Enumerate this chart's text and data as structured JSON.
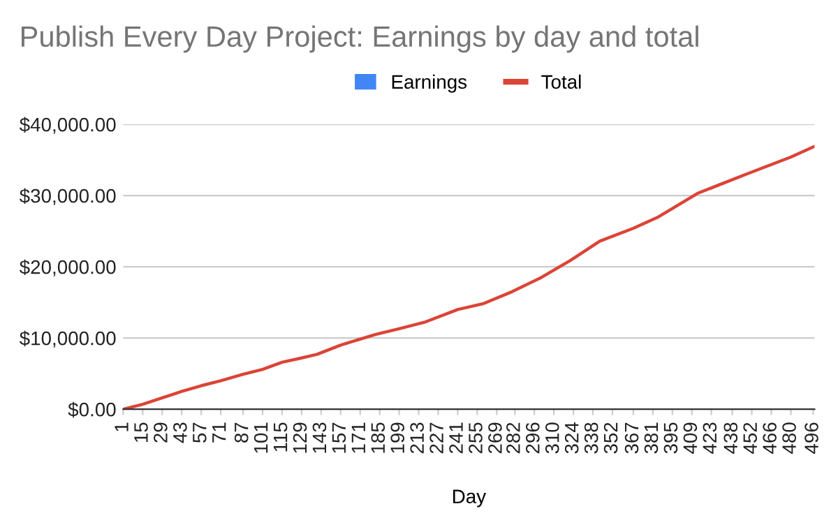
{
  "chart_data": {
    "type": "line",
    "title": "Publish Every Day Project: Earnings by day and total",
    "xlabel": "Day",
    "x": [
      1,
      15,
      29,
      43,
      57,
      71,
      87,
      101,
      115,
      129,
      140,
      157,
      182,
      199,
      217,
      241,
      259,
      280,
      301,
      322,
      343,
      367,
      385,
      413,
      448,
      480,
      497
    ],
    "series": [
      {
        "name": "Earnings",
        "type": "bar",
        "color": "#4285f4",
        "values": [
          null,
          null,
          null,
          null,
          null,
          null,
          null,
          null,
          null,
          null,
          null,
          null,
          null,
          null,
          null,
          null,
          null,
          null,
          null,
          null,
          null,
          null,
          null,
          null,
          null,
          null,
          null
        ]
      },
      {
        "name": "Total",
        "color": "#db4437",
        "values": [
          0,
          700,
          1600,
          2500,
          3300,
          4000,
          4900,
          5600,
          6600,
          7200,
          7700,
          9000,
          10500,
          11300,
          12200,
          14000,
          14800,
          16500,
          18500,
          20900,
          23600,
          25400,
          27000,
          30300,
          33000,
          35400,
          36900
        ]
      }
    ],
    "xlim": [
      1,
      497
    ],
    "xticks": [
      1,
      15,
      29,
      43,
      57,
      71,
      87,
      101,
      115,
      129,
      143,
      157,
      171,
      185,
      199,
      213,
      227,
      241,
      255,
      269,
      282,
      296,
      310,
      324,
      338,
      352,
      367,
      381,
      395,
      409,
      423,
      438,
      452,
      466,
      480,
      496
    ],
    "ylim": [
      0,
      40000
    ],
    "yticks": [
      {
        "value": 0,
        "label": "$0.00"
      },
      {
        "value": 10000,
        "label": "$10,000.00"
      },
      {
        "value": 20000,
        "label": "$20,000.00"
      },
      {
        "value": 30000,
        "label": "$30,000.00"
      },
      {
        "value": 40000,
        "label": "$40,000.00"
      }
    ],
    "grid": "y",
    "legend": "top"
  }
}
